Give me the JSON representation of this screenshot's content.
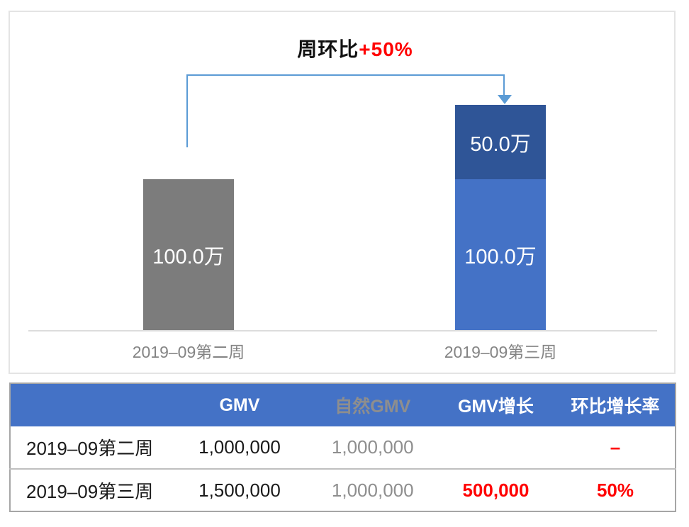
{
  "colors": {
    "bar_gray": "#7c7c7c",
    "bar_blue": "#4472c6",
    "bar_dark_blue": "#2f5597",
    "bracket_blue": "#5b9bd5",
    "table_header_blue": "#4472c6",
    "accent_red": "#ff0000",
    "muted_gray_text": "#8e8e8e",
    "axis_label_gray": "#848484"
  },
  "annotation": {
    "prefix": "周环比",
    "highlight": "+50%"
  },
  "chart_data": {
    "type": "bar",
    "stacked": true,
    "categories": [
      "2019–09第二周",
      "2019–09第三周"
    ],
    "series": [
      {
        "name": "自然GMV",
        "values": [
          1000000,
          1000000
        ],
        "labels": [
          "100.0万",
          "100.0万"
        ],
        "colors": [
          "#7c7c7c",
          "#4472c6"
        ]
      },
      {
        "name": "GMV增长",
        "values": [
          0,
          500000
        ],
        "labels": [
          "",
          "50.0万"
        ],
        "colors": [
          null,
          "#2f5597"
        ]
      }
    ],
    "annotation": "周环比+50%",
    "ylim": [
      0,
      1600000
    ],
    "unit": "万",
    "grid": false,
    "legend": false,
    "x_axis_line": true
  },
  "table": {
    "headers": [
      "",
      "GMV",
      "自然GMV",
      "GMV增长",
      "环比增长率"
    ],
    "rows": [
      {
        "cells": [
          "2019–09第二周",
          "1,000,000",
          "1,000,000",
          "",
          "–"
        ]
      },
      {
        "cells": [
          "2019–09第三周",
          "1,500,000",
          "1,000,000",
          "500,000",
          "50%"
        ]
      }
    ]
  }
}
